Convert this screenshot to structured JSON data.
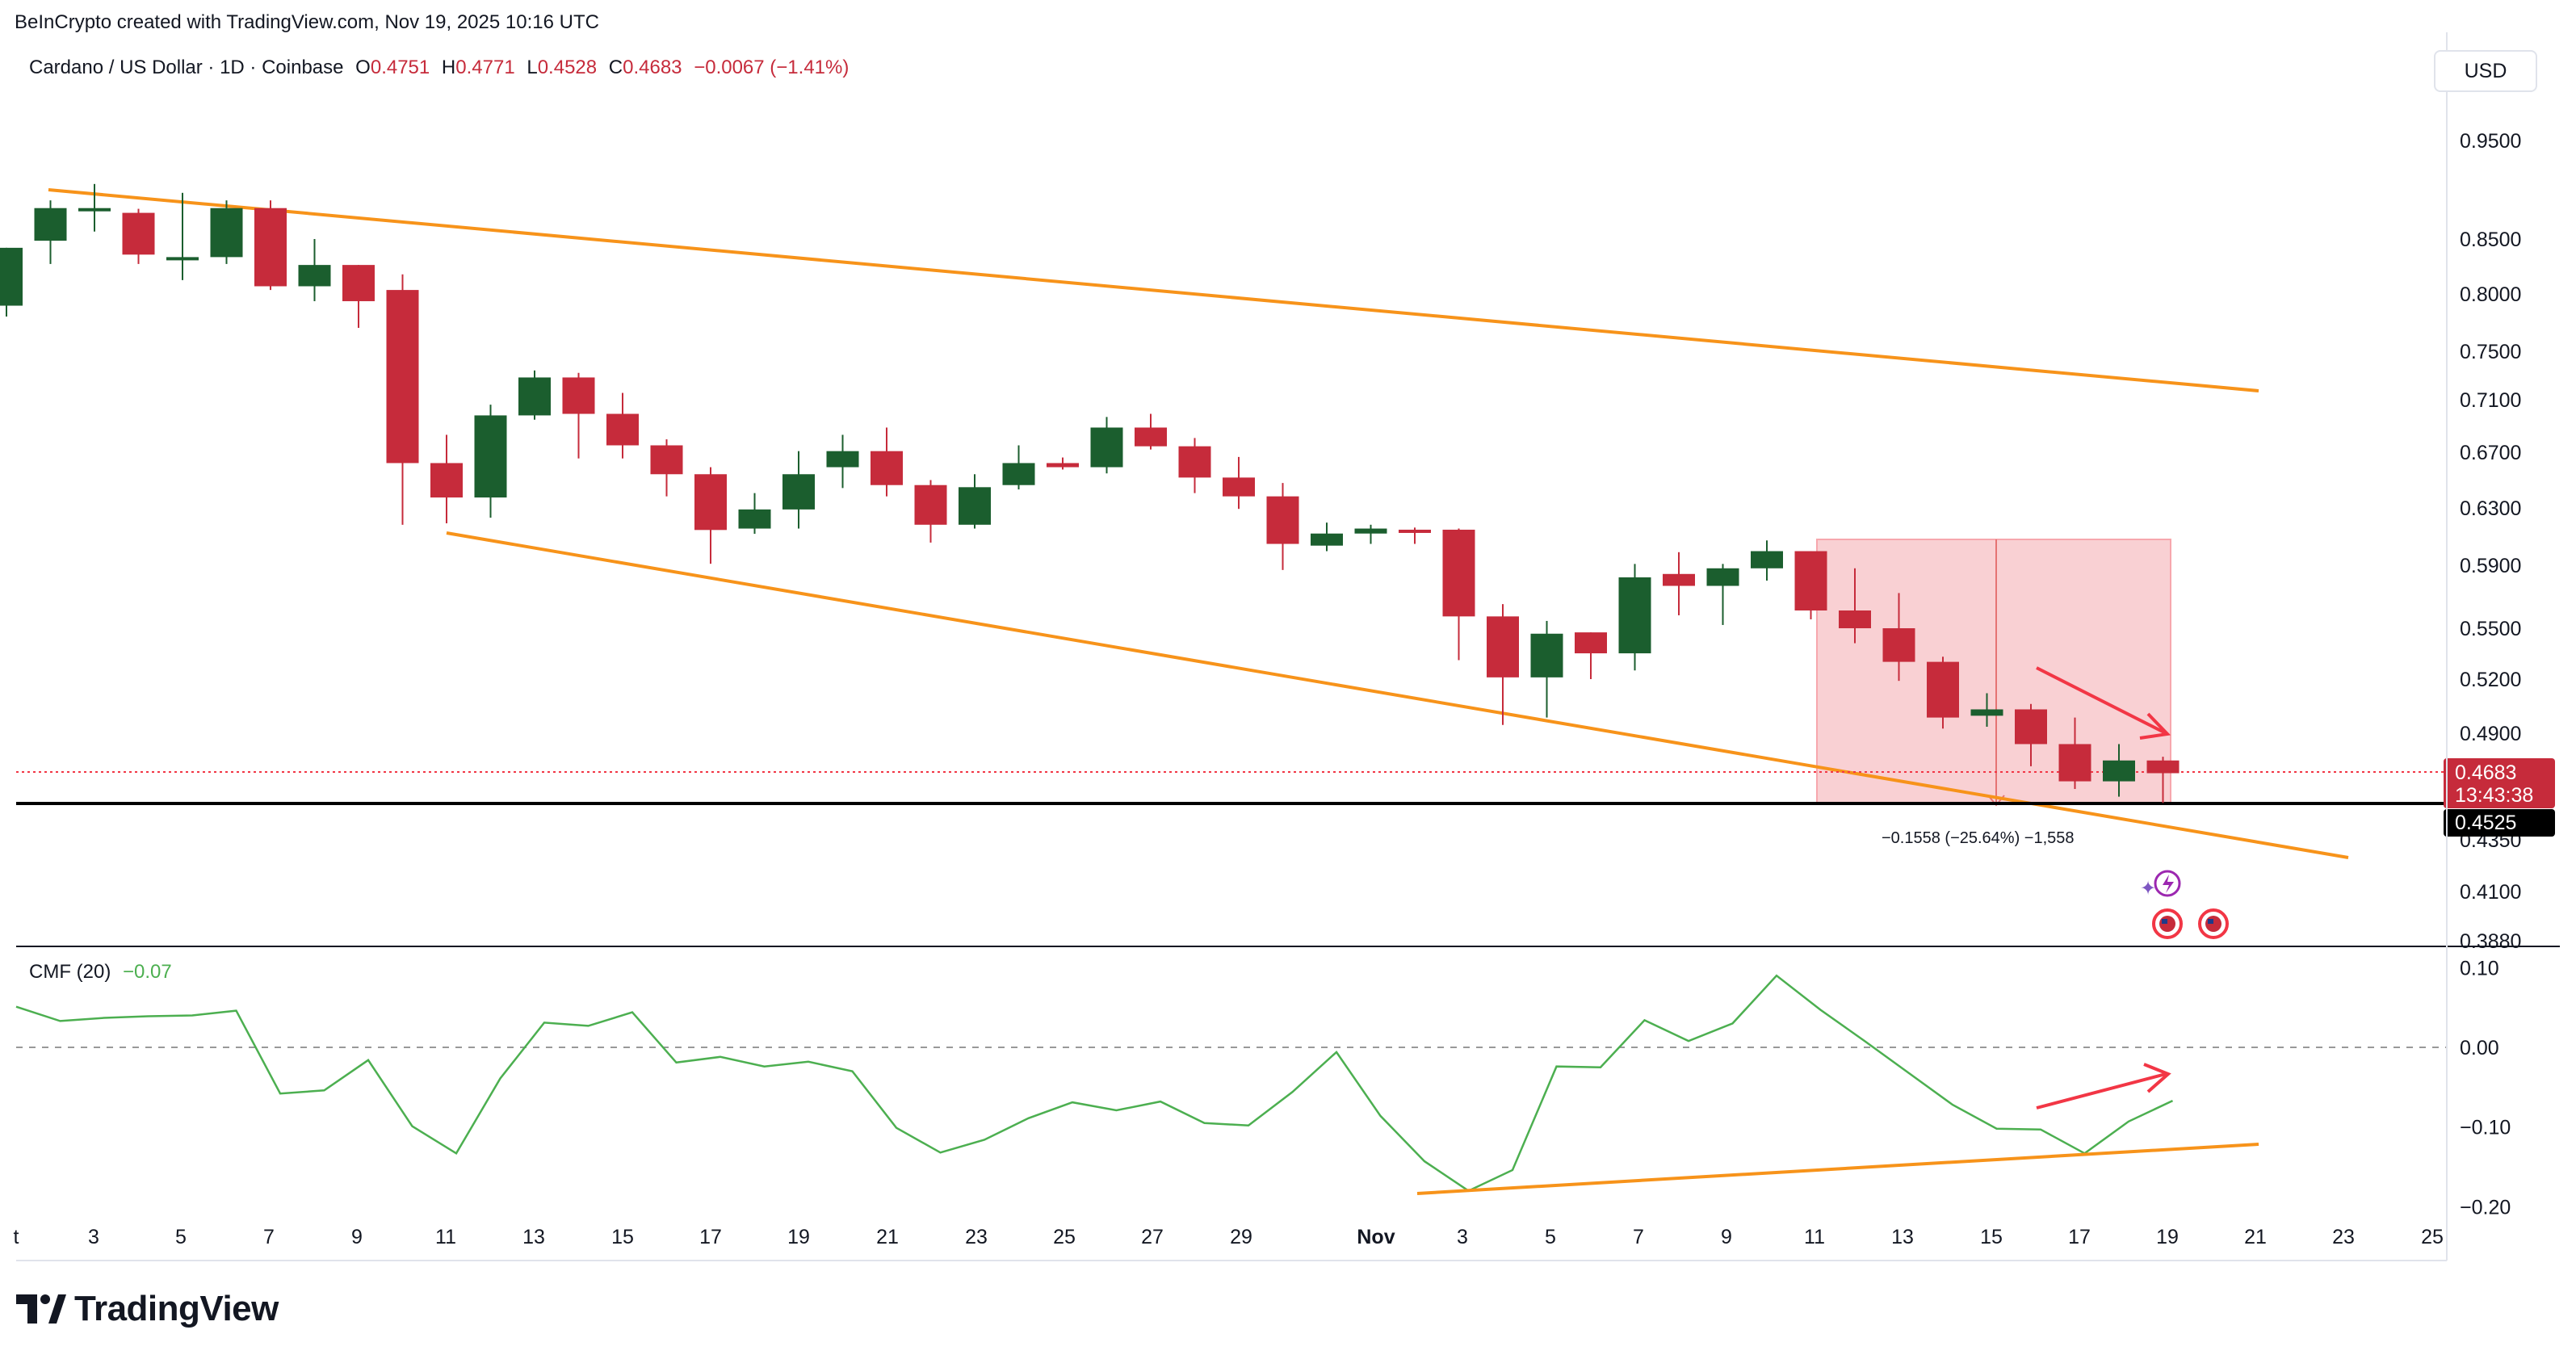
{
  "credit": "BeInCrypto created with TradingView.com, Nov 19, 2025 10:16 UTC",
  "legend": {
    "symbol": "Cardano / US Dollar · 1D · Coinbase",
    "o_label": "O",
    "o": "0.4751",
    "h_label": "H",
    "h": "0.4771",
    "l_label": "L",
    "l": "0.4528",
    "c_label": "C",
    "c": "0.4683",
    "change": "−0.0067 (−1.41%)"
  },
  "currency_button": "USD",
  "price_axis_labels": [
    "0.9500",
    "0.8500",
    "0.8000",
    "0.7500",
    "0.7100",
    "0.6700",
    "0.6300",
    "0.5900",
    "0.5500",
    "0.5200",
    "0.4900",
    "0.4350",
    "0.4100",
    "0.3880"
  ],
  "current_price": {
    "value": "0.4683",
    "countdown": "13:43:38"
  },
  "support_level": {
    "value": "0.4525"
  },
  "measure_label": "−0.1558 (−25.64%) −1,558",
  "cmf": {
    "title": "CMF (20)",
    "value": "−0.07",
    "axis_labels": [
      "0.10",
      "0.00",
      "−0.10",
      "−0.20"
    ]
  },
  "x_axis_labels": [
    "t",
    "3",
    "5",
    "7",
    "9",
    "11",
    "13",
    "15",
    "17",
    "19",
    "21",
    "23",
    "25",
    "27",
    "29",
    "Nov",
    "3",
    "5",
    "7",
    "9",
    "11",
    "13",
    "15",
    "17",
    "19",
    "21",
    "23",
    "25"
  ],
  "brand": "TradingView",
  "colors": {
    "up": "#1b5e2e",
    "down": "#c62b3b",
    "trendline": "#f7931a",
    "cmf_line": "#4caf50",
    "arrow": "#f23645",
    "measure_fill": "#f9d0d3"
  },
  "chart_data": {
    "type": "candlestick",
    "series": [
      {
        "name": "Cardano / US Dollar",
        "candles": [
          {
            "x": "Oct 1",
            "o": 0.7895,
            "h": 0.8418,
            "l": 0.7799,
            "c": 0.8418
          },
          {
            "x": "Oct 2",
            "o": 0.8484,
            "h": 0.8879,
            "l": 0.8269,
            "c": 0.8802
          },
          {
            "x": "Oct 3",
            "o": 0.8802,
            "h": 0.9045,
            "l": 0.8572,
            "c": 0.8802
          },
          {
            "x": "Oct 4",
            "o": 0.8755,
            "h": 0.8795,
            "l": 0.8269,
            "c": 0.8355
          },
          {
            "x": "Oct 5",
            "o": 0.8332,
            "h": 0.8955,
            "l": 0.8123,
            "c": 0.8332
          },
          {
            "x": "Oct 6",
            "o": 0.8332,
            "h": 0.8879,
            "l": 0.8269,
            "c": 0.8802
          },
          {
            "x": "Oct 7",
            "o": 0.8802,
            "h": 0.8879,
            "l": 0.8035,
            "c": 0.8068
          },
          {
            "x": "Oct 8",
            "o": 0.8068,
            "h": 0.85,
            "l": 0.7935,
            "c": 0.826
          },
          {
            "x": "Oct 9",
            "o": 0.826,
            "h": 0.826,
            "l": 0.77,
            "c": 0.7935
          },
          {
            "x": "Oct 10",
            "o": 0.8035,
            "h": 0.8175,
            "l": 0.618,
            "c": 0.662
          },
          {
            "x": "Oct 11",
            "o": 0.662,
            "h": 0.683,
            "l": 0.619,
            "c": 0.6373
          },
          {
            "x": "Oct 12",
            "o": 0.6373,
            "h": 0.7061,
            "l": 0.623,
            "c": 0.6978
          },
          {
            "x": "Oct 13",
            "o": 0.6978,
            "h": 0.7339,
            "l": 0.6945,
            "c": 0.7281
          },
          {
            "x": "Oct 14",
            "o": 0.7281,
            "h": 0.7319,
            "l": 0.6654,
            "c": 0.699
          },
          {
            "x": "Oct 15",
            "o": 0.699,
            "h": 0.7155,
            "l": 0.6654,
            "c": 0.6751
          },
          {
            "x": "Oct 16",
            "o": 0.6751,
            "h": 0.6796,
            "l": 0.6381,
            "c": 0.6539
          },
          {
            "x": "Oct 17",
            "o": 0.6539,
            "h": 0.659,
            "l": 0.591,
            "c": 0.6143
          },
          {
            "x": "Oct 18",
            "o": 0.6153,
            "h": 0.6404,
            "l": 0.6116,
            "c": 0.6289
          },
          {
            "x": "Oct 19",
            "o": 0.6289,
            "h": 0.6708,
            "l": 0.6153,
            "c": 0.6539
          },
          {
            "x": "Oct 20",
            "o": 0.659,
            "h": 0.683,
            "l": 0.644,
            "c": 0.6708
          },
          {
            "x": "Oct 21",
            "o": 0.6708,
            "h": 0.6885,
            "l": 0.6381,
            "c": 0.6461
          },
          {
            "x": "Oct 22",
            "o": 0.6461,
            "h": 0.6497,
            "l": 0.6055,
            "c": 0.618
          },
          {
            "x": "Oct 23",
            "o": 0.618,
            "h": 0.6539,
            "l": 0.6153,
            "c": 0.6446
          },
          {
            "x": "Oct 24",
            "o": 0.6461,
            "h": 0.6751,
            "l": 0.643,
            "c": 0.662
          },
          {
            "x": "Oct 25",
            "o": 0.662,
            "h": 0.6661,
            "l": 0.6573,
            "c": 0.659
          },
          {
            "x": "Oct 26",
            "o": 0.659,
            "h": 0.6966,
            "l": 0.6545,
            "c": 0.6885
          },
          {
            "x": "Oct 27",
            "o": 0.6885,
            "h": 0.699,
            "l": 0.672,
            "c": 0.6744
          },
          {
            "x": "Oct 28",
            "o": 0.6744,
            "h": 0.6806,
            "l": 0.6404,
            "c": 0.6515
          },
          {
            "x": "Oct 29",
            "o": 0.6515,
            "h": 0.6665,
            "l": 0.6293,
            "c": 0.6381
          },
          {
            "x": "Oct 30",
            "o": 0.6381,
            "h": 0.6476,
            "l": 0.5869,
            "c": 0.6046
          },
          {
            "x": "Oct 31",
            "o": 0.6034,
            "h": 0.6195,
            "l": 0.5996,
            "c": 0.6118
          },
          {
            "x": "Nov 1",
            "o": 0.6118,
            "h": 0.618,
            "l": 0.6046,
            "c": 0.6153
          },
          {
            "x": "Nov 2",
            "o": 0.6145,
            "h": 0.616,
            "l": 0.6046,
            "c": 0.6141
          },
          {
            "x": "Nov 3",
            "o": 0.6145,
            "h": 0.6153,
            "l": 0.531,
            "c": 0.5573
          },
          {
            "x": "Nov 4",
            "o": 0.5573,
            "h": 0.565,
            "l": 0.4945,
            "c": 0.521
          },
          {
            "x": "Nov 5",
            "o": 0.521,
            "h": 0.5545,
            "l": 0.4985,
            "c": 0.5467
          },
          {
            "x": "Nov 6",
            "o": 0.5475,
            "h": 0.5475,
            "l": 0.52,
            "c": 0.535
          },
          {
            "x": "Nov 7",
            "o": 0.535,
            "h": 0.5909,
            "l": 0.525,
            "c": 0.5821
          },
          {
            "x": "Nov 8",
            "o": 0.5843,
            "h": 0.5989,
            "l": 0.558,
            "c": 0.5766
          },
          {
            "x": "Nov 9",
            "o": 0.5766,
            "h": 0.5909,
            "l": 0.552,
            "c": 0.588
          },
          {
            "x": "Nov 10",
            "o": 0.588,
            "h": 0.607,
            "l": 0.58,
            "c": 0.5996
          },
          {
            "x": "Nov 11",
            "o": 0.5996,
            "h": 0.5996,
            "l": 0.5555,
            "c": 0.561
          },
          {
            "x": "Nov 12",
            "o": 0.561,
            "h": 0.588,
            "l": 0.541,
            "c": 0.55
          },
          {
            "x": "Nov 13",
            "o": 0.55,
            "h": 0.572,
            "l": 0.519,
            "c": 0.53
          },
          {
            "x": "Nov 14",
            "o": 0.53,
            "h": 0.533,
            "l": 0.4925,
            "c": 0.4985
          },
          {
            "x": "Nov 15",
            "o": 0.4995,
            "h": 0.512,
            "l": 0.4935,
            "c": 0.503
          },
          {
            "x": "Nov 16",
            "o": 0.503,
            "h": 0.506,
            "l": 0.472,
            "c": 0.484
          },
          {
            "x": "Nov 17",
            "o": 0.484,
            "h": 0.4985,
            "l": 0.46,
            "c": 0.464
          },
          {
            "x": "Nov 18",
            "o": 0.464,
            "h": 0.484,
            "l": 0.456,
            "c": 0.4751
          },
          {
            "x": "Nov 19",
            "o": 0.4751,
            "h": 0.4771,
            "l": 0.4528,
            "c": 0.4683
          }
        ]
      }
    ],
    "cmf_series": [
      0.051,
      0.033,
      0.037,
      0.039,
      0.04,
      0.046,
      -0.058,
      -0.054,
      -0.016,
      -0.099,
      -0.133,
      -0.039,
      0.031,
      0.027,
      0.044,
      -0.019,
      -0.012,
      -0.024,
      -0.018,
      -0.03,
      -0.101,
      -0.132,
      -0.116,
      -0.089,
      -0.069,
      -0.079,
      -0.068,
      -0.095,
      -0.098,
      -0.056,
      -0.006,
      -0.086,
      -0.143,
      -0.18,
      -0.154,
      -0.024,
      -0.025,
      0.034,
      0.008,
      0.03,
      0.09,
      0.047,
      0.008,
      -0.032,
      -0.072,
      -0.102,
      -0.103,
      -0.133,
      -0.093,
      -0.067
    ],
    "ylim": [
      0.38,
      0.98
    ],
    "cmf_ylim": [
      -0.2,
      0.1
    ]
  }
}
